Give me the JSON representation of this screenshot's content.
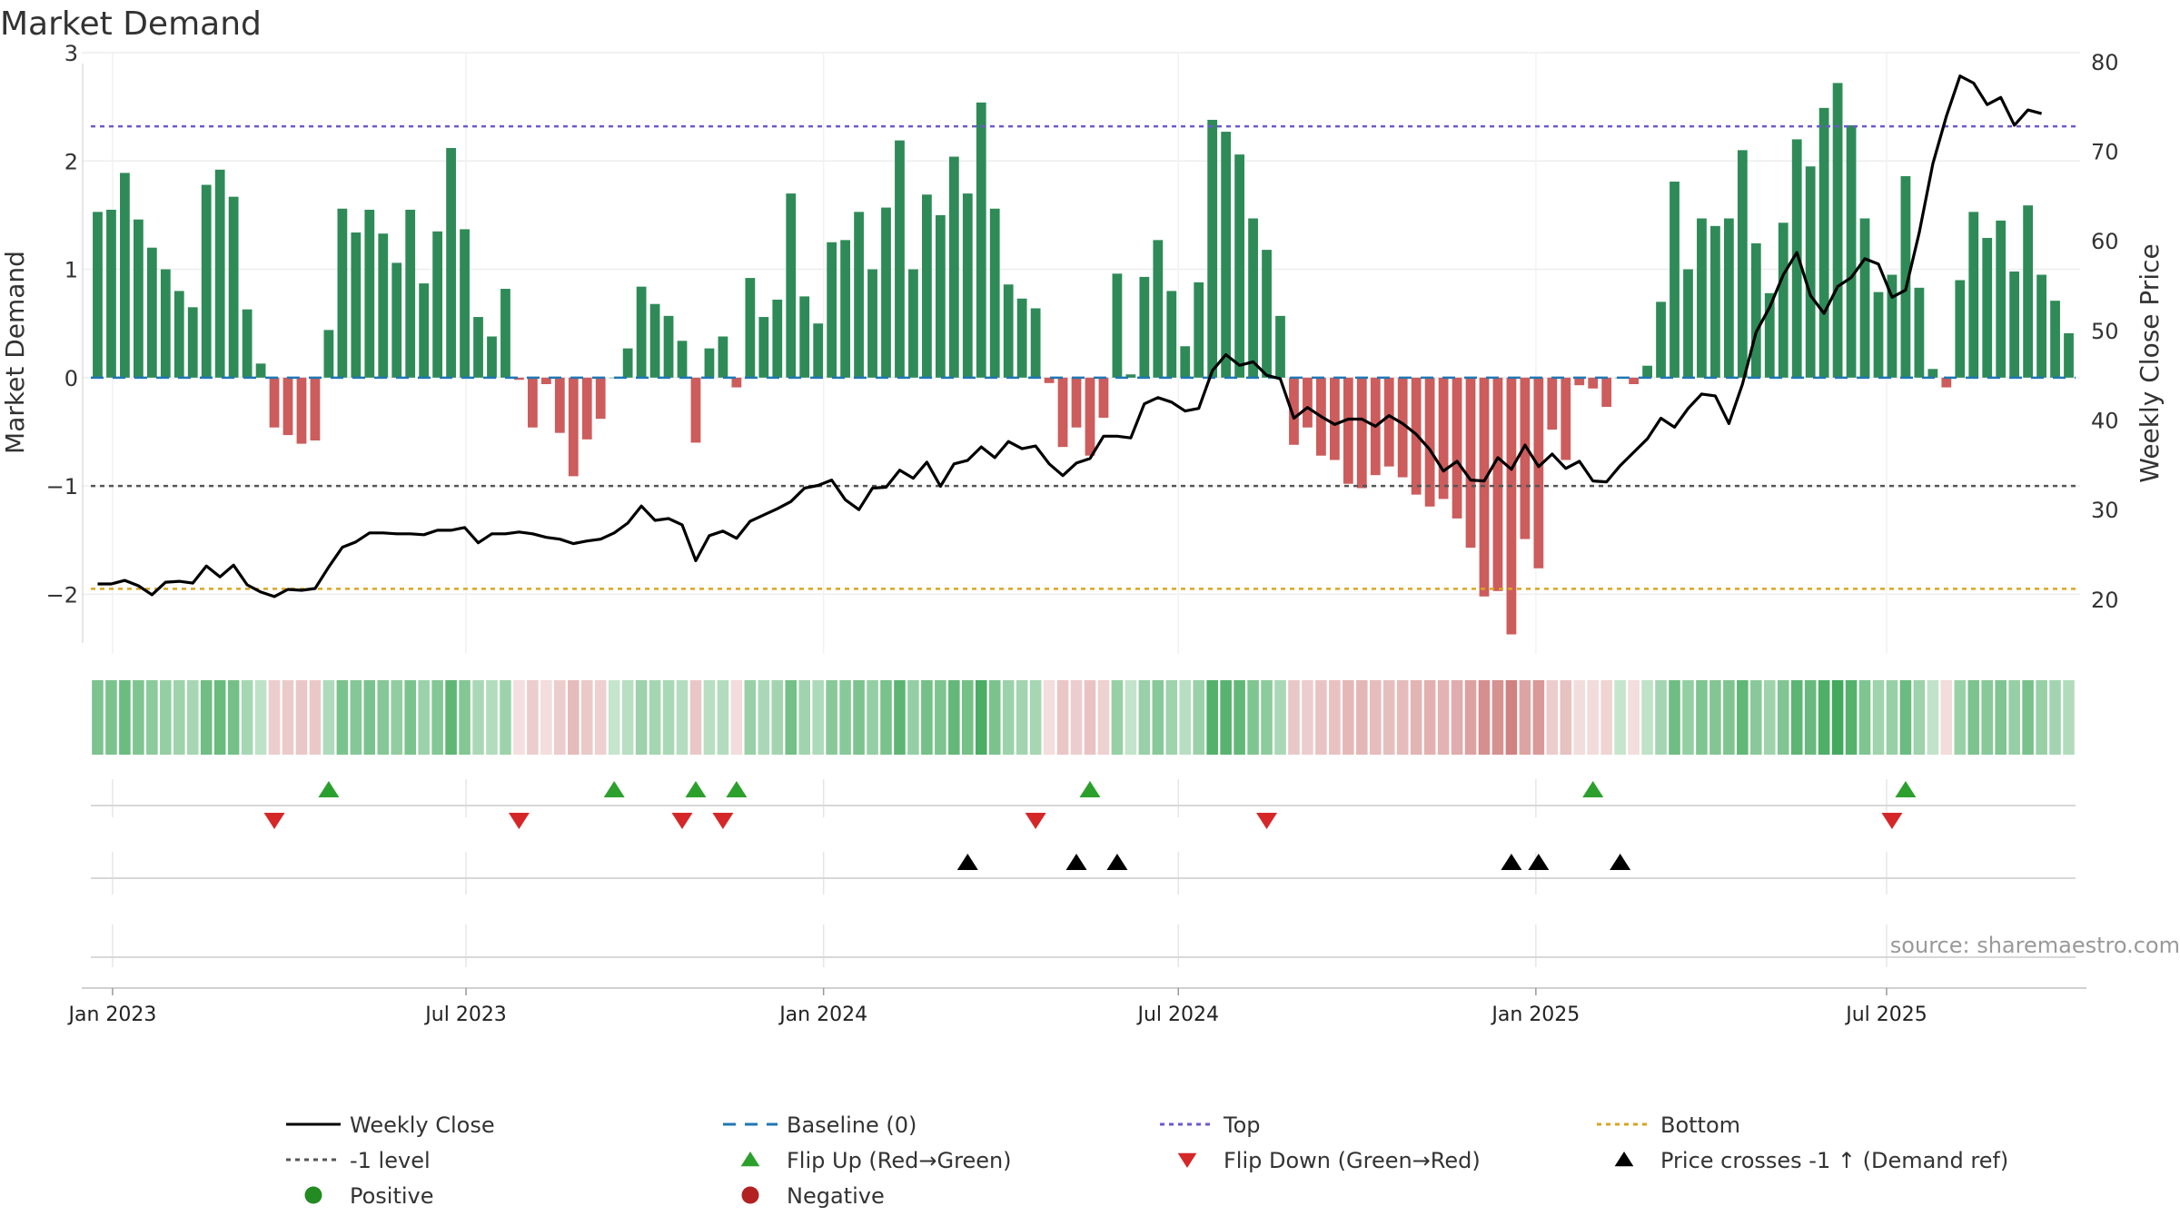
{
  "chart_data": {
    "type": "bar+line",
    "title": "Market Demand",
    "ylabel_left": "Market Demand",
    "ylabel_right": "Weekly Close Price",
    "ylim_left": [
      -2.55,
      3.0
    ],
    "ylim_right": [
      13.9,
      81.0
    ],
    "left_ticks": [
      {
        "value": 3,
        "label": "3"
      },
      {
        "value": 2,
        "label": "2"
      },
      {
        "value": 1,
        "label": "1"
      },
      {
        "value": 0,
        "label": "0"
      },
      {
        "value": -1,
        "label": "−1"
      },
      {
        "value": -2,
        "label": "−2"
      }
    ],
    "right_ticks": [
      {
        "value": 80,
        "label": "80"
      },
      {
        "value": 70,
        "label": "70"
      },
      {
        "value": 60,
        "label": "60"
      },
      {
        "value": 50,
        "label": "50"
      },
      {
        "value": 40,
        "label": "40"
      },
      {
        "value": 30,
        "label": "30"
      },
      {
        "value": 20,
        "label": "20"
      }
    ],
    "x_ticks": [
      {
        "week": 1.1,
        "label": "Jan 2023"
      },
      {
        "week": 27.1,
        "label": "Jul 2023"
      },
      {
        "week": 53.4,
        "label": "Jan 2024"
      },
      {
        "week": 79.5,
        "label": "Jul 2024"
      },
      {
        "week": 105.8,
        "label": "Jan 2025"
      },
      {
        "week": 131.6,
        "label": "Jul 2025"
      }
    ],
    "reference_lines": {
      "top": 2.32,
      "bottom": -1.95,
      "minus_one": -1,
      "baseline": 0
    },
    "demand": [
      1.53,
      1.55,
      1.89,
      1.46,
      1.2,
      1.0,
      0.8,
      0.65,
      1.78,
      1.92,
      1.67,
      0.63,
      0.13,
      -0.46,
      -0.53,
      -0.61,
      -0.58,
      0.44,
      1.56,
      1.34,
      1.55,
      1.33,
      1.06,
      1.55,
      0.87,
      1.35,
      2.12,
      1.37,
      0.56,
      0.38,
      0.82,
      -0.02,
      -0.46,
      -0.06,
      -0.51,
      -0.91,
      -0.57,
      -0.38,
      0.0,
      0.27,
      0.84,
      0.68,
      0.57,
      0.34,
      -0.6,
      0.27,
      0.38,
      -0.09,
      0.92,
      0.56,
      0.72,
      1.7,
      0.75,
      0.5,
      1.25,
      1.27,
      1.53,
      1.0,
      1.57,
      2.19,
      1.0,
      1.69,
      1.5,
      2.04,
      1.7,
      2.54,
      1.56,
      0.86,
      0.73,
      0.64,
      -0.05,
      -0.64,
      -0.46,
      -0.72,
      -0.37,
      0.96,
      0.03,
      0.93,
      1.27,
      0.8,
      0.29,
      0.88,
      2.38,
      2.27,
      2.06,
      1.47,
      1.18,
      0.57,
      -0.62,
      -0.46,
      -0.72,
      -0.76,
      -0.98,
      -1.02,
      -0.9,
      -0.82,
      -0.92,
      -1.08,
      -1.19,
      -1.12,
      -1.3,
      -1.57,
      -2.02,
      -1.97,
      -2.37,
      -1.49,
      -1.76,
      -0.48,
      -0.76,
      -0.07,
      -0.1,
      -0.27,
      0.0,
      -0.06,
      0.11,
      0.7,
      1.81,
      1.0,
      1.47,
      1.4,
      1.47,
      2.1,
      1.24,
      0.78,
      1.43,
      2.2,
      1.95,
      2.49,
      2.72,
      2.33,
      1.47,
      0.79,
      0.95,
      1.86,
      0.83,
      0.08,
      -0.09,
      0.9,
      1.53,
      1.29,
      1.45,
      0.98,
      1.59,
      0.95,
      0.71,
      0.41
    ],
    "close": [
      21.7,
      21.7,
      22.1,
      21.5,
      20.5,
      21.9,
      22.0,
      21.8,
      23.7,
      22.5,
      23.8,
      21.6,
      20.8,
      20.3,
      21.1,
      21.0,
      21.2,
      23.6,
      25.8,
      26.4,
      27.4,
      27.4,
      27.3,
      27.3,
      27.2,
      27.7,
      27.7,
      28.0,
      26.3,
      27.3,
      27.3,
      27.5,
      27.3,
      26.9,
      26.7,
      26.2,
      26.5,
      26.7,
      27.4,
      28.5,
      30.4,
      28.8,
      29.0,
      28.3,
      24.3,
      27.1,
      27.6,
      26.8,
      28.7,
      29.4,
      30.1,
      30.9,
      32.4,
      32.7,
      33.3,
      31.1,
      30.0,
      32.4,
      32.5,
      34.4,
      33.5,
      35.3,
      32.6,
      35.1,
      35.5,
      37.0,
      35.8,
      37.6,
      36.8,
      37.1,
      35.1,
      33.8,
      35.2,
      35.7,
      38.2,
      38.2,
      38.0,
      41.8,
      42.5,
      42.0,
      41.0,
      41.3,
      45.5,
      47.3,
      46.1,
      46.5,
      45.0,
      44.6,
      40.2,
      41.4,
      40.4,
      39.5,
      40.1,
      40.1,
      39.3,
      40.5,
      39.6,
      38.4,
      36.7,
      34.3,
      35.4,
      33.3,
      33.2,
      35.8,
      34.5,
      37.2,
      34.8,
      36.2,
      34.6,
      35.4,
      33.2,
      33.1,
      34.9,
      36.4,
      37.9,
      40.2,
      39.2,
      41.3,
      42.9,
      42.7,
      39.6,
      44.0,
      49.8,
      52.6,
      56.2,
      58.7,
      53.9,
      51.9,
      54.9,
      55.9,
      58.0,
      57.4,
      53.7,
      54.5,
      60.9,
      68.6,
      73.9,
      78.4,
      77.6,
      75.2,
      76.0,
      72.9,
      74.6,
      74.2
    ],
    "flip_up_weeks": [
      17,
      38,
      44,
      47,
      73,
      110,
      133
    ],
    "flip_down_weeks": [
      13,
      31,
      43,
      46,
      69,
      86,
      132
    ],
    "price_cross_weeks": [
      64,
      72,
      75,
      104,
      106,
      112
    ],
    "source": "source: sharemaestro.com",
    "legend": [
      {
        "key": "close",
        "label": "Weekly Close"
      },
      {
        "key": "baseline",
        "label": "Baseline (0)"
      },
      {
        "key": "top",
        "label": "Top"
      },
      {
        "key": "bottom",
        "label": "Bottom"
      },
      {
        "key": "minus_one",
        "label": "-1 level"
      },
      {
        "key": "flip_up",
        "label": "Flip Up (Red→Green)"
      },
      {
        "key": "flip_down",
        "label": "Flip Down (Green→Red)"
      },
      {
        "key": "price_cross",
        "label": "Price crosses -1 ↑ (Demand ref)"
      },
      {
        "key": "positive",
        "label": "Positive"
      },
      {
        "key": "negative",
        "label": "Negative"
      }
    ],
    "colors": {
      "positive_bar": "#2e8b57",
      "negative_bar": "#cd5c5c",
      "close_line": "#000000",
      "baseline": "#1f77b4",
      "top": "#6a5acd",
      "bottom": "#daa520",
      "minus_one": "#555555",
      "flip_up": "#2ca02c",
      "flip_down": "#d62728",
      "price_cross": "#000000",
      "positive_dot": "#228b22",
      "negative_dot": "#b22222"
    }
  }
}
